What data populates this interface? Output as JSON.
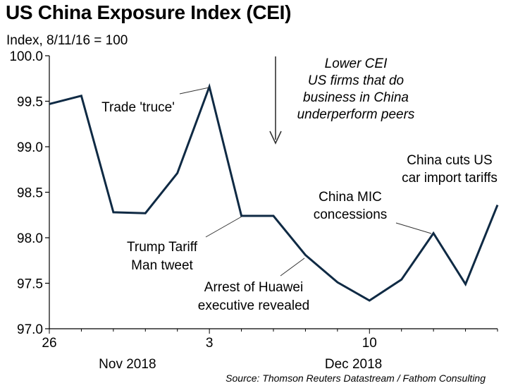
{
  "title": "US China Exposure Index (CEI)",
  "subtitle": "Index, 8/11/16 = 100",
  "source": "Source: Thomson Reuters Datastream / Fathom Consulting",
  "colors": {
    "line": "#0f2a44",
    "axis": "#000000",
    "annotation": "#333333"
  },
  "chart_data": {
    "type": "line",
    "title": "US China Exposure Index (CEI)",
    "ylabel": "Index, 8/11/16 = 100",
    "ylim": [
      97.0,
      100.0
    ],
    "yticks": [
      "97.0",
      "97.5",
      "98.0",
      "98.5",
      "99.0",
      "99.5",
      "100.0"
    ],
    "xtick_labels": [
      "26",
      "3",
      "10"
    ],
    "month_labels": [
      "Nov 2018",
      "Dec 2018"
    ],
    "grid": false,
    "series": [
      {
        "x": [
          "2018-11-26",
          "2018-11-27",
          "2018-11-28",
          "2018-11-29",
          "2018-11-30",
          "2018-12-03",
          "2018-12-04",
          "2018-12-05",
          "2018-12-06",
          "2018-12-07",
          "2018-12-10",
          "2018-12-11",
          "2018-12-12",
          "2018-12-13",
          "2018-12-14"
        ],
        "values": [
          99.47,
          99.56,
          98.28,
          98.27,
          98.71,
          99.66,
          98.24,
          98.24,
          97.81,
          97.51,
          97.31,
          97.54,
          98.05,
          97.49,
          98.36
        ]
      }
    ],
    "annotations": [
      {
        "lines": [
          "Trade 'truce'"
        ]
      },
      {
        "lines": [
          "Trump Tariff",
          "Man tweet"
        ]
      },
      {
        "lines": [
          "Arrest of Huawei",
          "executive revealed"
        ]
      },
      {
        "lines": [
          "China MIC",
          "concessions"
        ]
      },
      {
        "lines": [
          "China cuts US",
          "car import tariffs"
        ]
      },
      {
        "lines": [
          "Lower CEI",
          "US firms that do",
          "business in China",
          "underperform peers"
        ]
      }
    ]
  }
}
